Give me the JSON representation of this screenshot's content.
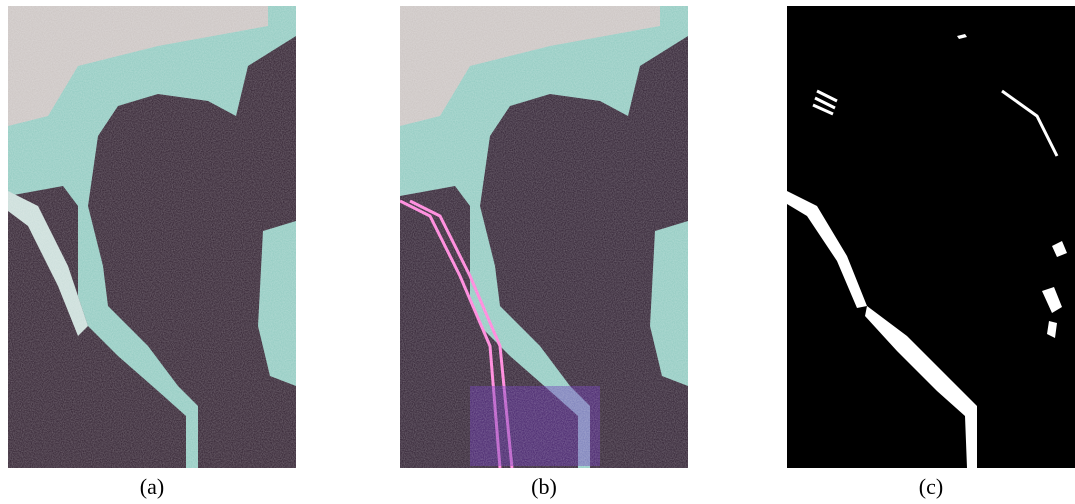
{
  "figure": {
    "panels": [
      {
        "caption": "(a)"
      },
      {
        "caption": "(b)"
      },
      {
        "caption": "(c)"
      }
    ]
  }
}
